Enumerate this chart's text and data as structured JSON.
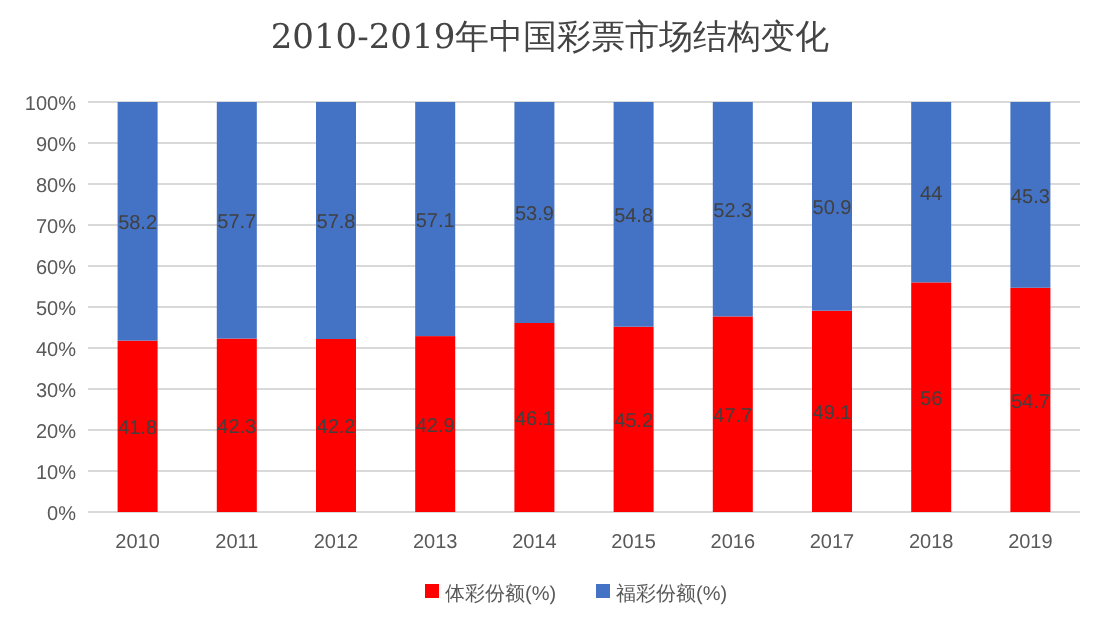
{
  "chart_data": {
    "type": "bar",
    "title": "2010-2019年中国彩票市场结构变化",
    "categories": [
      "2010",
      "2011",
      "2012",
      "2013",
      "2014",
      "2015",
      "2016",
      "2017",
      "2018",
      "2019"
    ],
    "series": [
      {
        "name": "体彩份额(%)",
        "color": "#ff0000",
        "values": [
          41.8,
          42.3,
          42.2,
          42.9,
          46.1,
          45.2,
          47.7,
          49.1,
          56,
          54.7
        ]
      },
      {
        "name": "福彩份额(%)",
        "color": "#4472c4",
        "values": [
          58.2,
          57.7,
          57.8,
          57.1,
          53.9,
          54.8,
          52.3,
          50.9,
          44,
          45.3
        ]
      }
    ],
    "stacked": true,
    "data_labels": true,
    "legend": "bottom",
    "grid": "y",
    "ylim": [
      0,
      100
    ],
    "yticks": [
      {
        "value": 0,
        "label": "0%"
      },
      {
        "value": 10,
        "label": "10%"
      },
      {
        "value": 20,
        "label": "20%"
      },
      {
        "value": 30,
        "label": "30%"
      },
      {
        "value": 40,
        "label": "40%"
      },
      {
        "value": 50,
        "label": "50%"
      },
      {
        "value": 60,
        "label": "60%"
      },
      {
        "value": 70,
        "label": "70%"
      },
      {
        "value": 80,
        "label": "80%"
      },
      {
        "value": 90,
        "label": "90%"
      },
      {
        "value": 100,
        "label": "100%"
      }
    ]
  }
}
